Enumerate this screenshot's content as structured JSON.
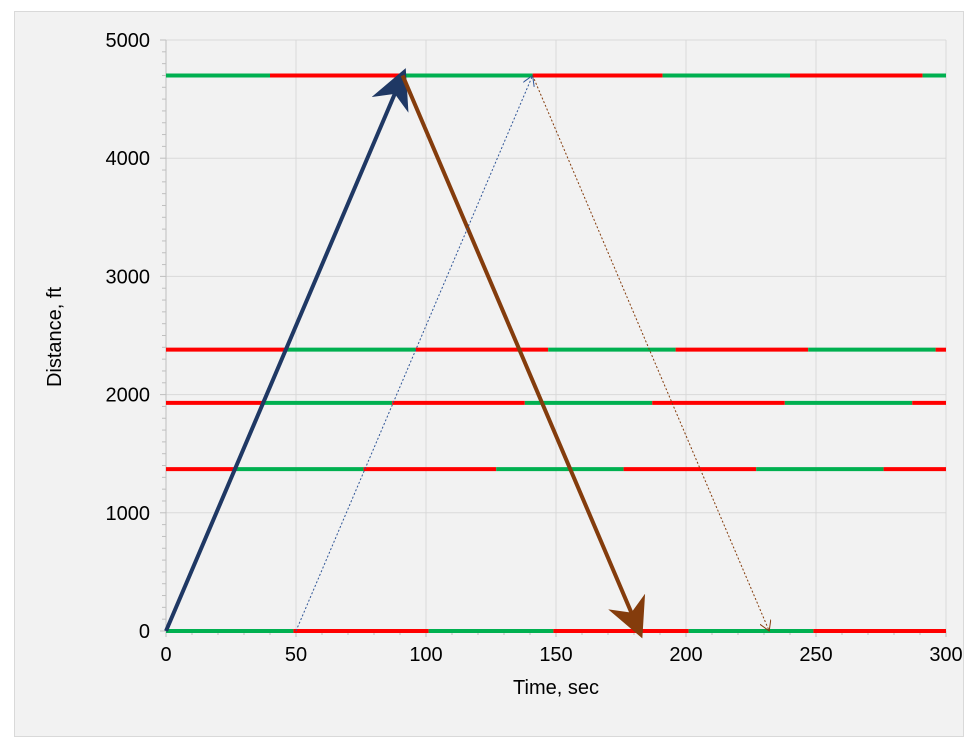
{
  "chart_data": {
    "type": "line",
    "title": "",
    "xlabel": "Time, sec",
    "ylabel": "Distance, ft",
    "xlim": [
      0,
      300
    ],
    "ylim": [
      0,
      5000
    ],
    "x_ticks": [
      "0",
      "50",
      "100",
      "150",
      "200",
      "250",
      "300"
    ],
    "y_ticks": [
      "0",
      "1000",
      "2000",
      "3000",
      "4000",
      "5000"
    ],
    "grid": true,
    "colors": {
      "green": "#00b050",
      "red": "#ff0000",
      "forward_trajectory": "#1f3864",
      "return_trajectory": "#843c0c",
      "dotted_blue": "#2f5597",
      "dotted_brown": "#843c0c",
      "grid": "#d9d9d9",
      "background": "#f2f2f2"
    },
    "signal_timelines": [
      {
        "distance": 0,
        "segments": [
          {
            "start": 0,
            "end": 49,
            "state": "green"
          },
          {
            "start": 49,
            "end": 101,
            "state": "red"
          },
          {
            "start": 101,
            "end": 149,
            "state": "green"
          },
          {
            "start": 149,
            "end": 201,
            "state": "red"
          },
          {
            "start": 201,
            "end": 249,
            "state": "green"
          },
          {
            "start": 249,
            "end": 300,
            "state": "red"
          }
        ]
      },
      {
        "distance": 1370,
        "segments": [
          {
            "start": 0,
            "end": 26,
            "state": "red"
          },
          {
            "start": 26,
            "end": 76,
            "state": "green"
          },
          {
            "start": 76,
            "end": 127,
            "state": "red"
          },
          {
            "start": 127,
            "end": 176,
            "state": "green"
          },
          {
            "start": 176,
            "end": 227,
            "state": "red"
          },
          {
            "start": 227,
            "end": 276,
            "state": "green"
          },
          {
            "start": 276,
            "end": 300,
            "state": "red"
          }
        ]
      },
      {
        "distance": 1930,
        "segments": [
          {
            "start": 0,
            "end": 37,
            "state": "red"
          },
          {
            "start": 37,
            "end": 87,
            "state": "green"
          },
          {
            "start": 87,
            "end": 138,
            "state": "red"
          },
          {
            "start": 138,
            "end": 187,
            "state": "green"
          },
          {
            "start": 187,
            "end": 238,
            "state": "red"
          },
          {
            "start": 238,
            "end": 287,
            "state": "green"
          },
          {
            "start": 287,
            "end": 300,
            "state": "red"
          }
        ]
      },
      {
        "distance": 2380,
        "segments": [
          {
            "start": 0,
            "end": 46,
            "state": "red"
          },
          {
            "start": 46,
            "end": 96,
            "state": "green"
          },
          {
            "start": 96,
            "end": 147,
            "state": "red"
          },
          {
            "start": 147,
            "end": 196,
            "state": "green"
          },
          {
            "start": 196,
            "end": 247,
            "state": "red"
          },
          {
            "start": 247,
            "end": 296,
            "state": "green"
          },
          {
            "start": 296,
            "end": 300,
            "state": "red"
          }
        ]
      },
      {
        "distance": 4700,
        "segments": [
          {
            "start": 0,
            "end": 40,
            "state": "green"
          },
          {
            "start": 40,
            "end": 91,
            "state": "red"
          },
          {
            "start": 91,
            "end": 141,
            "state": "green"
          },
          {
            "start": 141,
            "end": 191,
            "state": "red"
          },
          {
            "start": 191,
            "end": 240,
            "state": "green"
          },
          {
            "start": 240,
            "end": 291,
            "state": "red"
          },
          {
            "start": 291,
            "end": 300,
            "state": "green"
          }
        ]
      }
    ],
    "trajectories": [
      {
        "x": [
          0,
          91
        ],
        "y": [
          0,
          4700
        ],
        "style": "solid",
        "color_key": "forward_trajectory",
        "arrow": true
      },
      {
        "x": [
          91,
          182
        ],
        "y": [
          4700,
          0
        ],
        "style": "solid",
        "color_key": "return_trajectory",
        "arrow": true
      },
      {
        "x": [
          50,
          141
        ],
        "y": [
          0,
          4700
        ],
        "style": "dotted",
        "color_key": "dotted_blue",
        "arrow": true
      },
      {
        "x": [
          141,
          232
        ],
        "y": [
          4700,
          0
        ],
        "style": "dotted",
        "color_key": "dotted_brown",
        "arrow": true
      }
    ]
  }
}
